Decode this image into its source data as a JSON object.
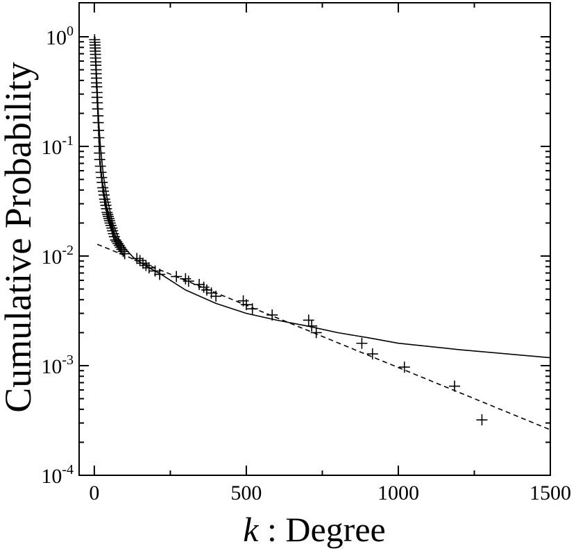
{
  "chart_data": {
    "type": "scatter",
    "scale": {
      "x": "linear",
      "y": "log"
    },
    "xlim": [
      -50,
      1500
    ],
    "ylim": [
      0.0001,
      1
    ],
    "grid": false,
    "legend": "none",
    "xlabel": {
      "var": "k",
      "rest": " : Degree"
    },
    "ylabel": "Cumulative Probability",
    "x_ticks": [
      {
        "value": 0,
        "label": "0"
      },
      {
        "value": 500,
        "label": "500"
      },
      {
        "value": 1000,
        "label": "1000"
      },
      {
        "value": 1500,
        "label": "1500"
      }
    ],
    "y_ticks": [
      {
        "value": 1,
        "base": "10",
        "exp": "0"
      },
      {
        "value": 0.1,
        "base": "10",
        "exp": "-1"
      },
      {
        "value": 0.01,
        "base": "10",
        "exp": "-2"
      },
      {
        "value": 0.001,
        "base": "10",
        "exp": "-3"
      },
      {
        "value": 0.0001,
        "base": "10",
        "exp": "-4"
      }
    ],
    "series": [
      {
        "style": "plus-markers",
        "color": "#000000",
        "points": [
          [
            1,
            0.94
          ],
          [
            2,
            0.89
          ],
          [
            2,
            0.84
          ],
          [
            3,
            0.79
          ],
          [
            3,
            0.74
          ],
          [
            4,
            0.69
          ],
          [
            4,
            0.64
          ],
          [
            5,
            0.59
          ],
          [
            5,
            0.55
          ],
          [
            6,
            0.5
          ],
          [
            6,
            0.46
          ],
          [
            7,
            0.42
          ],
          [
            7,
            0.38
          ],
          [
            8,
            0.35
          ],
          [
            9,
            0.31
          ],
          [
            9,
            0.28
          ],
          [
            10,
            0.25
          ],
          [
            11,
            0.22
          ],
          [
            12,
            0.19
          ],
          [
            13,
            0.165
          ],
          [
            14,
            0.14
          ],
          [
            15,
            0.12
          ],
          [
            16,
            0.1
          ],
          [
            17,
            0.087
          ],
          [
            18,
            0.076
          ],
          [
            20,
            0.066
          ],
          [
            22,
            0.058
          ],
          [
            24,
            0.052
          ],
          [
            26,
            0.047
          ],
          [
            28,
            0.042
          ],
          [
            30,
            0.039
          ],
          [
            32,
            0.036
          ],
          [
            34,
            0.033
          ],
          [
            36,
            0.031
          ],
          [
            38,
            0.029
          ],
          [
            40,
            0.027
          ],
          [
            42,
            0.025
          ],
          [
            44,
            0.024
          ],
          [
            46,
            0.023
          ],
          [
            48,
            0.022
          ],
          [
            50,
            0.021
          ],
          [
            52,
            0.02
          ],
          [
            55,
            0.019
          ],
          [
            58,
            0.018
          ],
          [
            60,
            0.017
          ],
          [
            63,
            0.016
          ],
          [
            66,
            0.015
          ],
          [
            70,
            0.014
          ],
          [
            74,
            0.0135
          ],
          [
            78,
            0.013
          ],
          [
            82,
            0.0125
          ],
          [
            86,
            0.012
          ],
          [
            90,
            0.0115
          ],
          [
            95,
            0.011
          ],
          [
            100,
            0.0105
          ],
          [
            140,
            0.0095
          ],
          [
            150,
            0.0091
          ],
          [
            160,
            0.0086
          ],
          [
            170,
            0.0082
          ],
          [
            180,
            0.0078
          ],
          [
            200,
            0.0073
          ],
          [
            215,
            0.0068
          ],
          [
            270,
            0.0065
          ],
          [
            300,
            0.0062
          ],
          [
            310,
            0.0059
          ],
          [
            345,
            0.0055
          ],
          [
            360,
            0.0052
          ],
          [
            370,
            0.0049
          ],
          [
            385,
            0.0046
          ],
          [
            400,
            0.0043
          ],
          [
            490,
            0.0039
          ],
          [
            500,
            0.0036
          ],
          [
            520,
            0.0033
          ],
          [
            585,
            0.0029
          ],
          [
            705,
            0.0026
          ],
          [
            715,
            0.0023
          ],
          [
            730,
            0.002
          ],
          [
            880,
            0.0016
          ],
          [
            915,
            0.00128
          ],
          [
            1020,
            0.00097
          ],
          [
            1185,
            0.00065
          ],
          [
            1275,
            0.00032
          ]
        ]
      },
      {
        "style": "solid-line",
        "color": "#000000",
        "points": [
          [
            0,
            1
          ],
          [
            5,
            0.6
          ],
          [
            10,
            0.3
          ],
          [
            15,
            0.16
          ],
          [
            20,
            0.1
          ],
          [
            30,
            0.054
          ],
          [
            40,
            0.036
          ],
          [
            60,
            0.02
          ],
          [
            80,
            0.0145
          ],
          [
            100,
            0.0118
          ],
          [
            130,
            0.0096
          ],
          [
            170,
            0.0081
          ],
          [
            220,
            0.0068
          ],
          [
            300,
            0.0049
          ],
          [
            400,
            0.0037
          ],
          [
            500,
            0.003
          ],
          [
            600,
            0.0026
          ],
          [
            700,
            0.0023
          ],
          [
            800,
            0.002
          ],
          [
            900,
            0.0018
          ],
          [
            1000,
            0.0016
          ],
          [
            1200,
            0.0014
          ],
          [
            1500,
            0.00118
          ]
        ]
      },
      {
        "style": "dashed-line",
        "color": "#000000",
        "points": [
          [
            10,
            0.0128
          ],
          [
            1500,
            0.00026
          ]
        ]
      }
    ]
  }
}
